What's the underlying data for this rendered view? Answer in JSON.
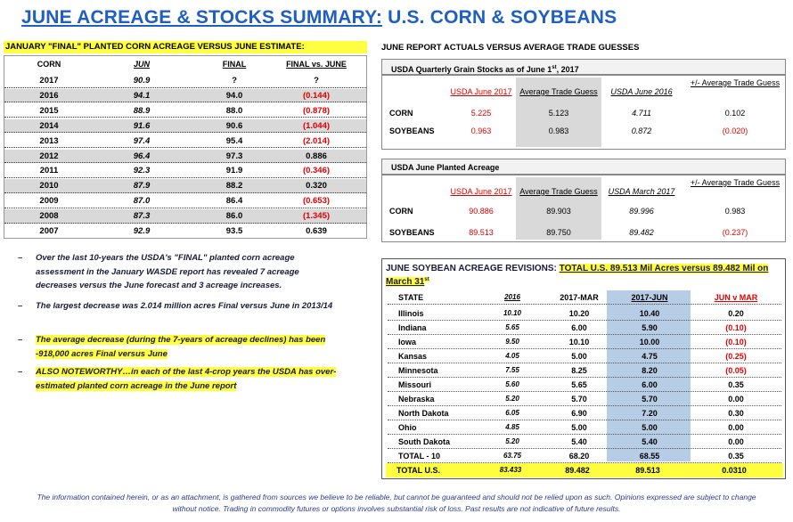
{
  "title": {
    "part1": "JUNE ACREAGE & STOCKS SUMMARY:",
    "part2": "U.S. CORN & SOYBEANS"
  },
  "corn_table": {
    "heading": "JANUARY \"FINAL\" PLANTED CORN ACREAGE VERSUS JUNE ESTIMATE:",
    "columns": [
      "CORN",
      "JUN",
      "FINAL",
      "FINAL vs. JUNE"
    ],
    "rows": [
      {
        "year": "2017",
        "jun": "90.9",
        "final": "?",
        "diff": "?",
        "neg": false
      },
      {
        "year": "2016",
        "jun": "94.1",
        "final": "94.0",
        "diff": "(0.144)",
        "neg": true
      },
      {
        "year": "2015",
        "jun": "88.9",
        "final": "88.0",
        "diff": "(0.878)",
        "neg": true
      },
      {
        "year": "2014",
        "jun": "91.6",
        "final": "90.6",
        "diff": "(1.044)",
        "neg": true
      },
      {
        "year": "2013",
        "jun": "97.4",
        "final": "95.4",
        "diff": "(2.014)",
        "neg": true
      },
      {
        "year": "2012",
        "jun": "96.4",
        "final": "97.3",
        "diff": "0.886",
        "neg": false
      },
      {
        "year": "2011",
        "jun": "92.3",
        "final": "91.9",
        "diff": "(0.346)",
        "neg": true
      },
      {
        "year": "2010",
        "jun": "87.9",
        "final": "88.2",
        "diff": "0.320",
        "neg": false
      },
      {
        "year": "2009",
        "jun": "87.0",
        "final": "86.4",
        "diff": "(0.653)",
        "neg": true
      },
      {
        "year": "2008",
        "jun": "87.3",
        "final": "86.0",
        "diff": "(1.345)",
        "neg": true
      },
      {
        "year": "2007",
        "jun": "92.9",
        "final": "93.5",
        "diff": "0.639",
        "neg": false
      }
    ]
  },
  "bullets": [
    {
      "dash": "–",
      "text": "Over the last 10-years the USDA's \"FINAL\" planted corn acreage assessment in the January WASDE report has revealed 7 acreage decreases versus the June forecast and 3 acreage increases.",
      "highlight": false
    },
    {
      "dash": "–",
      "text": "The largest decrease was 2.014 million acres Final versus June in 2013/14",
      "highlight": false
    },
    {
      "dash": "–",
      "text": "The average decrease (during the 7-years of acreage declines) has been -918,000 acres Final versus June",
      "highlight": true
    },
    {
      "dash": "–",
      "text": "ALSO NOTEWORTHY…in each of the last 4-crop years the USDA has over-estimated planted corn acreage in the June report",
      "highlight": true
    }
  ],
  "right_heading": "JUNE REPORT ACTUALS VERSUS AVERAGE TRADE GUESSES",
  "stocks": {
    "title": "USDA Quarterly Grain Stocks as of June 1",
    "title_sup": "st",
    "title_year": ", 2017",
    "headers": [
      "USDA June 2017",
      "Average Trade Guess",
      "USDA June 2016",
      "+/- Average Trade Guess"
    ],
    "rows": [
      {
        "label": "CORN",
        "usda": "5.225",
        "guess": "5.123",
        "prior": "4.711",
        "diff": "0.102",
        "neg": false
      },
      {
        "label": "SOYBEANS",
        "usda": "0.963",
        "guess": "0.983",
        "prior": "0.872",
        "diff": "(0.020)",
        "neg": true
      }
    ]
  },
  "acreage": {
    "title": "USDA June Planted Acreage",
    "headers": [
      "USDA June 2017",
      "Average Trade Guess",
      "USDA March 2017",
      "+/- Average Trade Guess"
    ],
    "rows": [
      {
        "label": "CORN",
        "usda": "90.886",
        "guess": "89.903",
        "prior": "89.996",
        "diff": "0.983",
        "neg": false
      },
      {
        "label": "SOYBEANS",
        "usda": "89.513",
        "guess": "89.750",
        "prior": "89.482",
        "diff": "(0.237)",
        "neg": true
      }
    ]
  },
  "soy_revisions": {
    "title_lead": "JUNE SOYBEAN ACREAGE REVISIONS: ",
    "title_hl": "TOTAL U.S. 89.513 Mil Acres versus 89.482 Mil on March 31",
    "title_sup": "st",
    "columns": [
      "STATE",
      "2016",
      "2017-MAR",
      "2017-JUN",
      "JUN v MAR"
    ],
    "rows": [
      {
        "state": "Illinois",
        "y2016": "10.10",
        "mar": "10.20",
        "jun": "10.40",
        "diff": "0.20",
        "neg": false
      },
      {
        "state": "Indiana",
        "y2016": "5.65",
        "mar": "6.00",
        "jun": "5.90",
        "diff": "(0.10)",
        "neg": true
      },
      {
        "state": "Iowa",
        "y2016": "9.50",
        "mar": "10.10",
        "jun": "10.00",
        "diff": "(0.10)",
        "neg": true
      },
      {
        "state": "Kansas",
        "y2016": "4.05",
        "mar": "5.00",
        "jun": "4.75",
        "diff": "(0.25)",
        "neg": true
      },
      {
        "state": "Minnesota",
        "y2016": "7.55",
        "mar": "8.25",
        "jun": "8.20",
        "diff": "(0.05)",
        "neg": true
      },
      {
        "state": "Missouri",
        "y2016": "5.60",
        "mar": "5.65",
        "jun": "6.00",
        "diff": "0.35",
        "neg": false
      },
      {
        "state": "Nebraska",
        "y2016": "5.20",
        "mar": "5.70",
        "jun": "5.70",
        "diff": "0.00",
        "neg": false
      },
      {
        "state": "North Dakota",
        "y2016": "6.05",
        "mar": "6.90",
        "jun": "7.20",
        "diff": "0.30",
        "neg": false
      },
      {
        "state": "Ohio",
        "y2016": "4.85",
        "mar": "5.00",
        "jun": "5.00",
        "diff": "0.00",
        "neg": false
      },
      {
        "state": "South Dakota",
        "y2016": "5.20",
        "mar": "5.40",
        "jun": "5.40",
        "diff": "0.00",
        "neg": false
      },
      {
        "state": "TOTAL - 10",
        "y2016": "63.75",
        "mar": "68.20",
        "jun": "68.55",
        "diff": "0.35",
        "neg": false
      }
    ],
    "total": {
      "state": "TOTAL U.S.",
      "y2016": "83.433",
      "mar": "89.482",
      "jun": "89.513",
      "diff": "0.0310"
    }
  },
  "footer": "The information contained herein, or as an attachment, is gathered from sources we believe to be reliable, but cannot be guaranteed and should not be relied upon as such. Opinions expressed are subject to change without notice. Trading in commodity futures or options involves substantial risk of loss. Past results are not indicative of future results.",
  "colors": {
    "title_blue": "#1f5fbf",
    "highlight_yellow": "#ffff3f",
    "negative_red": "#e00000",
    "shade_gray": "#d9d9d9",
    "jun_col_blue": "#b7cde6"
  }
}
